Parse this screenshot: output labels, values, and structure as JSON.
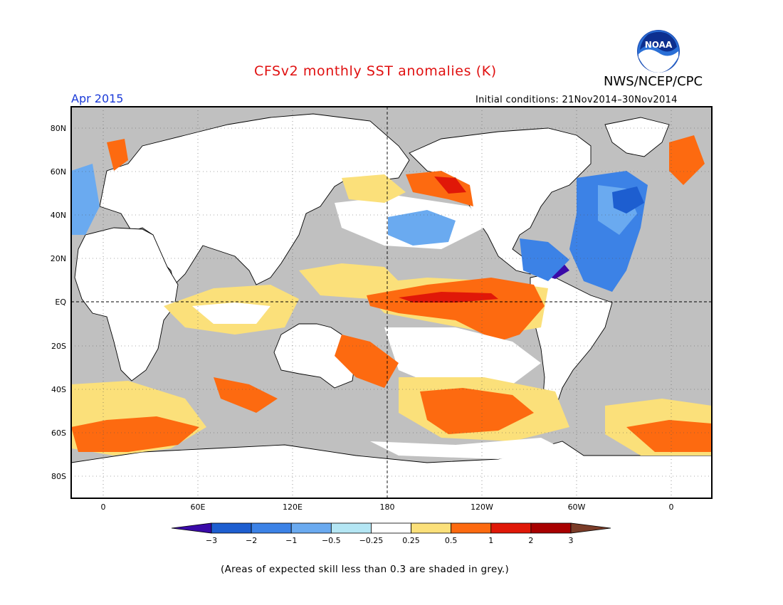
{
  "header": {
    "title": "CFSv2 monthly SST anomalies (K)",
    "agency": "NWS/NCEP/CPC",
    "valid_month": "Apr 2015",
    "initial_conditions": "Initial conditions: 21Nov2014–30Nov2014"
  },
  "logo": {
    "text": "NOAA",
    "icon": "noaa-logo-icon"
  },
  "map": {
    "lat_labels": [
      "80N",
      "60N",
      "40N",
      "20N",
      "EQ",
      "20S",
      "40S",
      "60S",
      "80S"
    ],
    "lon_labels": [
      "0",
      "60E",
      "120E",
      "180",
      "120W",
      "60W",
      "0"
    ],
    "ocean_mask_color": "#c0c0c0",
    "land_color": "#ffffff"
  },
  "colorbar": {
    "levels": [
      "−3",
      "−2",
      "−1",
      "−0.5",
      "−0.25",
      "0.25",
      "0.5",
      "1",
      "2",
      "3"
    ],
    "colors": [
      "#3a0aa8",
      "#1d5ed0",
      "#3c82e6",
      "#6aaaf0",
      "#b4e6f4",
      "#ffffff",
      "#fbe07a",
      "#fd6a10",
      "#e01808",
      "#a80000",
      "#7a3c28"
    ]
  },
  "footnote": "(Areas of expected skill less than 0.3 are shaded in grey.)"
}
